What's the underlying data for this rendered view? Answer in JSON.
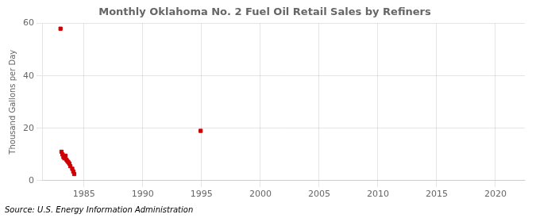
{
  "chart_data": {
    "type": "scatter",
    "title": "Monthly Oklahoma No. 2 Fuel Oil Retail Sales by Refiners",
    "ylabel": "Thousand Gallons per Day",
    "annotation": "Source: U.S. Energy Information Administration",
    "x": [
      1983.0,
      1983.083,
      1983.167,
      1983.25,
      1983.333,
      1983.417,
      1983.5,
      1983.583,
      1983.667,
      1983.75,
      1983.833,
      1984.0,
      1984.083,
      1984.167,
      1994.917
    ],
    "values": [
      58.0,
      11.0,
      10.0,
      9.0,
      8.5,
      9.5,
      8.0,
      7.5,
      7.0,
      6.5,
      5.5,
      4.5,
      3.5,
      2.5,
      19.0
    ],
    "color": "#cc0000",
    "marker": "square",
    "xlim": [
      1981.5,
      2022.5
    ],
    "ylim": [
      0,
      60
    ],
    "xticks": [
      1985,
      1990,
      1995,
      2000,
      2005,
      2010,
      2015,
      2020
    ],
    "yticks": [
      0,
      20,
      40,
      60
    ],
    "grid": true
  }
}
